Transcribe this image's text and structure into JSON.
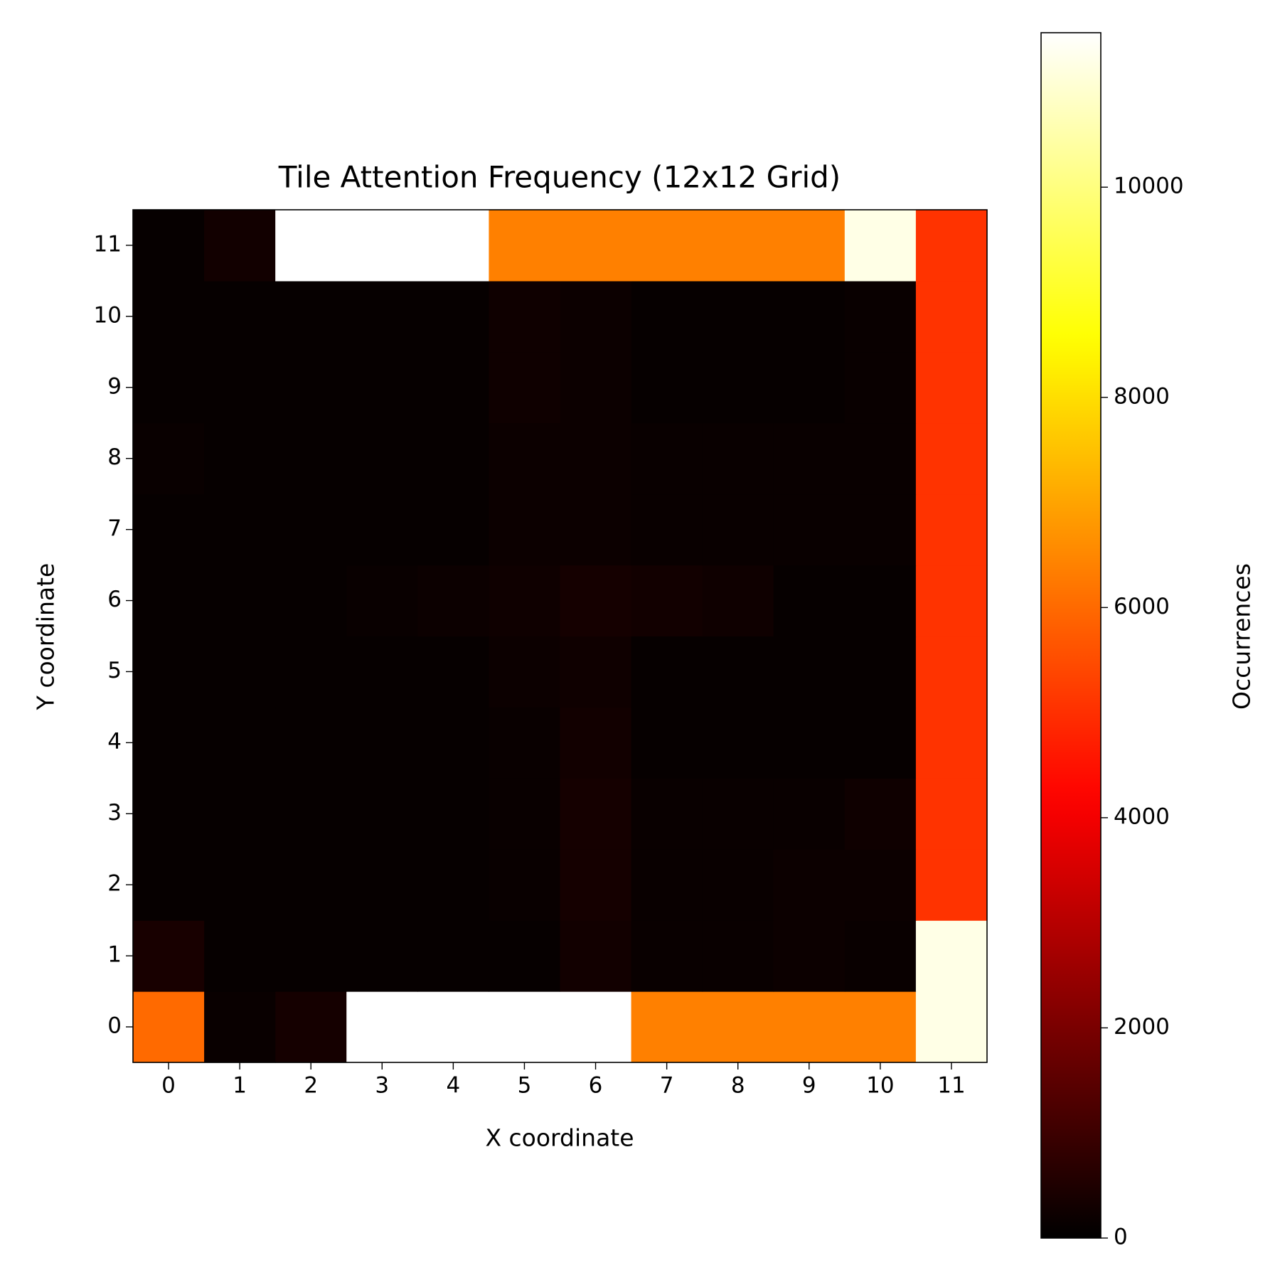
{
  "chart_data": {
    "type": "heatmap",
    "title": "Tile Attention Frequency (12x12 Grid)",
    "x_label": "X coordinate",
    "y_label": "Y coordinate",
    "colorbar_label": "Occurrences",
    "colormap": "hot",
    "x": [
      0,
      1,
      2,
      3,
      4,
      5,
      6,
      7,
      8,
      9,
      10,
      11
    ],
    "y": [
      0,
      1,
      2,
      3,
      4,
      5,
      6,
      7,
      8,
      9,
      10,
      11
    ],
    "z": [
      [
        6000,
        150,
        350,
        11470,
        11470,
        11470,
        11470,
        6380,
        6380,
        6380,
        6380,
        11180
      ],
      [
        400,
        100,
        100,
        100,
        100,
        100,
        300,
        150,
        150,
        200,
        150,
        11180
      ],
      [
        100,
        100,
        100,
        100,
        100,
        150,
        350,
        150,
        150,
        200,
        200,
        5060
      ],
      [
        100,
        100,
        100,
        100,
        100,
        150,
        350,
        150,
        150,
        150,
        250,
        5060
      ],
      [
        100,
        100,
        100,
        100,
        100,
        150,
        300,
        100,
        100,
        100,
        100,
        5060
      ],
      [
        100,
        100,
        100,
        100,
        100,
        200,
        250,
        100,
        100,
        100,
        100,
        5060
      ],
      [
        100,
        100,
        100,
        150,
        200,
        250,
        350,
        300,
        250,
        100,
        100,
        5060
      ],
      [
        100,
        100,
        100,
        100,
        100,
        200,
        200,
        150,
        150,
        150,
        150,
        5060
      ],
      [
        150,
        100,
        100,
        100,
        100,
        200,
        200,
        150,
        150,
        150,
        150,
        5060
      ],
      [
        100,
        100,
        100,
        100,
        100,
        250,
        200,
        100,
        100,
        100,
        150,
        5060
      ],
      [
        100,
        100,
        100,
        100,
        100,
        250,
        200,
        100,
        100,
        100,
        150,
        5060
      ],
      [
        100,
        300,
        11470,
        11470,
        11470,
        6380,
        6380,
        6380,
        6380,
        6380,
        11180,
        5060
      ]
    ],
    "clim": [
      0,
      11470
    ],
    "cticks": [
      0,
      2000,
      4000,
      6000,
      8000,
      10000
    ]
  }
}
